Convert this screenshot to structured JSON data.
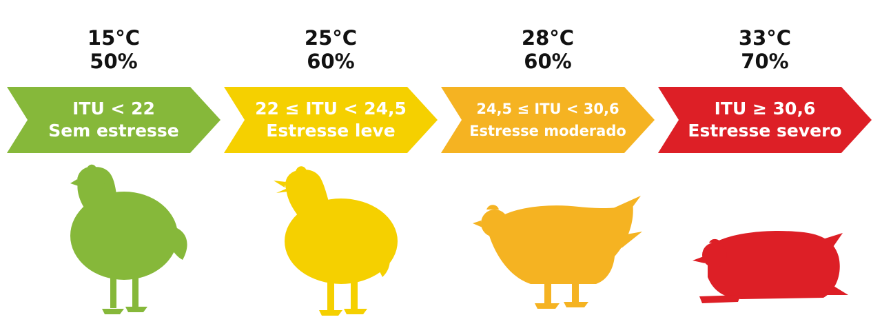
{
  "colors": {
    "no_stress": "#86b83a",
    "light_stress": "#f5d000",
    "moderate_stress": "#f5b322",
    "severe_stress": "#dd1f26"
  },
  "stages": [
    {
      "temperature": "15°C",
      "humidity": "50%",
      "itu": "ITU < 22",
      "stress": "Sem estresse",
      "icon": "standing-chicken-icon"
    },
    {
      "temperature": "25°C",
      "humidity": "60%",
      "itu": "22 ≤ ITU < 24,5",
      "stress": "Estresse leve",
      "icon": "panting-chicken-icon"
    },
    {
      "temperature": "28°C",
      "humidity": "60%",
      "itu": "24,5 ≤ ITU < 30,6",
      "stress": "Estresse moderado",
      "icon": "crouching-chicken-icon"
    },
    {
      "temperature": "33°C",
      "humidity": "70%",
      "itu": "ITU ≥ 30,6",
      "stress": "Estresse severo",
      "icon": "lying-chicken-icon"
    }
  ]
}
